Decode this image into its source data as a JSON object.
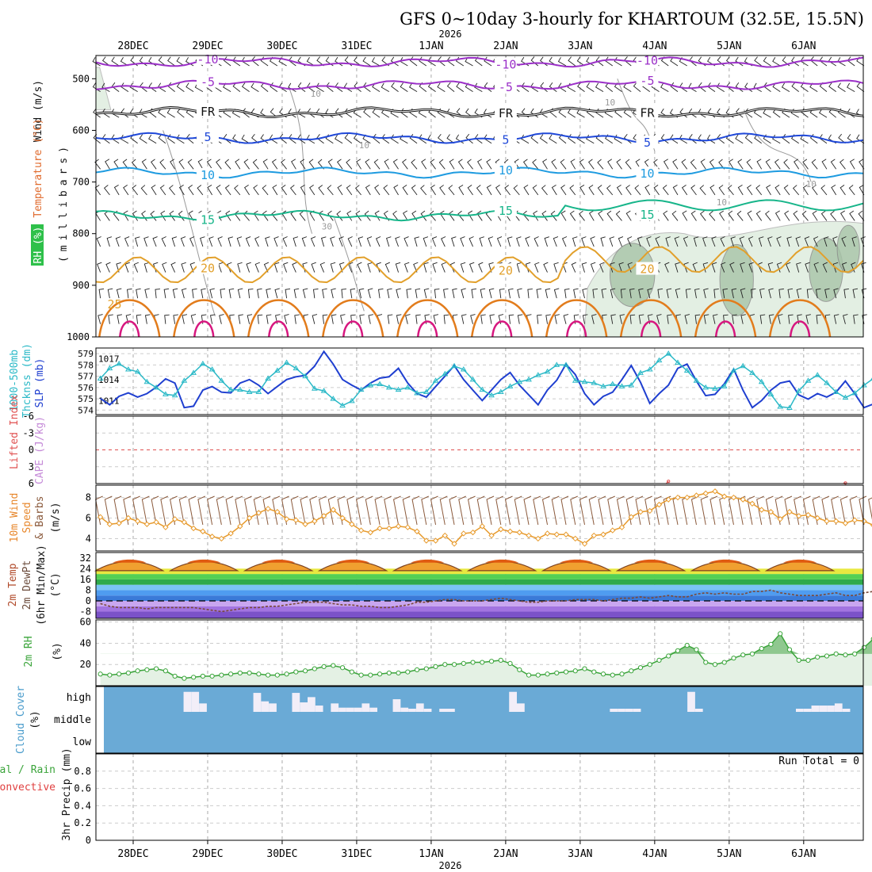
{
  "title": "GFS 0~10day 3-hourly for KHARTOUM (32.5E, 15.5N)",
  "year_label": "2026",
  "colors": {
    "purple": "#9b30c8",
    "black": "#111111",
    "blue": "#1f48d8",
    "skyblue": "#1e9be0",
    "green": "#17b58a",
    "gold": "#e2a02b",
    "orange": "#e27c1c",
    "magenta": "#d7177f",
    "slp": "#1f3fd0",
    "thick": "#2bb9c7",
    "wind10": "#e79a2c",
    "rh": "#3aa43a",
    "cloud": "#6aaad6",
    "lifted": "#e05050",
    "cape": "#c58ad8"
  },
  "chart_data": {
    "type": "meteogram",
    "x_axis": {
      "unit": "days since 27 Dec 2025 12Z",
      "range": [
        0,
        10.3
      ],
      "date_labels": [
        {
          "t": 0.5,
          "label": "28DEC"
        },
        {
          "t": 1.5,
          "label": "29DEC"
        },
        {
          "t": 2.5,
          "label": "30DEC"
        },
        {
          "t": 3.5,
          "label": "31DEC"
        },
        {
          "t": 4.5,
          "label": "1JAN"
        },
        {
          "t": 5.5,
          "label": "2JAN"
        },
        {
          "t": 6.5,
          "label": "3JAN"
        },
        {
          "t": 7.5,
          "label": "4JAN"
        },
        {
          "t": 8.5,
          "label": "5JAN"
        },
        {
          "t": 9.5,
          "label": "6JAN"
        }
      ]
    },
    "panels": [
      {
        "id": "upper_air",
        "type": "contour",
        "ylabel": "(millibars)",
        "y_ticks": [
          500,
          600,
          700,
          800,
          900,
          1000
        ],
        "ylim": [
          455,
          1000
        ],
        "legend": [
          "RH (%)",
          "Temperature (°C)",
          "Wind (m/s)"
        ],
        "temperature_contours": [
          {
            "value": -10,
            "label": "-10",
            "level_mb": 468
          },
          {
            "value": -5,
            "label": "-5",
            "level_mb": 512
          },
          {
            "value": 0,
            "label": "FR",
            "level_mb": 565
          },
          {
            "value": 5,
            "label": "5",
            "level_mb": 615
          },
          {
            "value": 10,
            "label": "10",
            "level_mb": 682
          },
          {
            "value": 15,
            "label": "15",
            "level_mb": 765
          },
          {
            "value": 20,
            "label": "20",
            "level_mb": 870
          },
          {
            "value": 25,
            "label": "25",
            "level_mb": 935
          }
        ],
        "rh_contour_labels": [
          "10",
          "10",
          "10",
          "10",
          "10",
          "30"
        ]
      },
      {
        "id": "slp_thickness",
        "type": "line",
        "ylabel_left": "1000-500mb Thckss (dm)",
        "ylabel_right": "SLP (mb)",
        "thickness_ticks": [
          574,
          575,
          576,
          577,
          578,
          579
        ],
        "slp_ticks": [
          1011,
          1014,
          1017
        ],
        "series": [
          {
            "name": "SLP (mb)",
            "range": [
              1009,
              1018.5
            ],
            "values": [
              1011.3,
              1010.4,
              1011.6,
              1012.1,
              1011.5,
              1012.0,
              1012.9,
              1014.1,
              1013.5,
              1010.0,
              1010.2,
              1012.5,
              1013.0,
              1012.2,
              1012.1,
              1013.5,
              1014.0,
              1013.2,
              1012.0,
              1013.0,
              1014.0,
              1014.4,
              1014.6,
              1015.9,
              1018.0,
              1016.2,
              1014.0,
              1013.2,
              1012.5,
              1013.5,
              1014.2,
              1014.4,
              1015.6,
              1013.5,
              1012.0,
              1011.5,
              1013.0,
              1014.5,
              1016.0,
              1014.0,
              1012.5,
              1011.0,
              1012.5,
              1014.0,
              1015.0,
              1013.2,
              1011.8,
              1010.4,
              1012.5,
              1013.9,
              1016.2,
              1014.7,
              1012.0,
              1010.4,
              1011.6,
              1012.2,
              1014.0,
              1016.0,
              1013.6,
              1010.6,
              1012.0,
              1013.2,
              1015.6,
              1016.2,
              1013.8,
              1011.7,
              1011.9,
              1013.4,
              1015.5,
              1012.5,
              1010.0,
              1011.0,
              1012.5,
              1013.5,
              1013.8,
              1011.8,
              1011.2,
              1012.0,
              1011.5,
              1012.2,
              1013.8,
              1012.0,
              1010.0,
              1010.5,
              1011.5,
              1013.3
            ]
          },
          {
            "name": "1000-500mb Thickness (dm)",
            "range": [
              573.6,
              579.5
            ],
            "values": [
              576.8,
              577.7,
              578.1,
              577.6,
              577.4,
              576.5,
              576.0,
              575.4,
              575.3,
              576.6,
              577.3,
              578.1,
              577.6,
              576.6,
              575.8,
              575.8,
              575.6,
              575.6,
              576.8,
              577.5,
              578.2,
              577.7,
              577.0,
              575.9,
              575.7,
              575.0,
              574.4,
              574.8,
              575.8,
              576.2,
              576.3,
              576.0,
              575.8,
              576.0,
              575.5,
              575.6,
              576.6,
              577.2,
              577.9,
              577.6,
              576.7,
              575.8,
              575.3,
              575.6,
              576.1,
              576.5,
              576.7,
              577.1,
              577.4,
              578.0,
              578.0,
              576.6,
              576.5,
              576.4,
              576.1,
              576.3,
              576.1,
              576.2,
              577.3,
              577.6,
              578.4,
              579.0,
              578.2,
              577.5,
              576.6,
              576.0,
              575.9,
              576.1,
              577.5,
              577.9,
              577.3,
              576.5,
              575.4,
              574.3,
              574.2,
              575.7,
              576.6,
              577.1,
              576.4,
              575.6,
              575.1,
              575.5,
              576.2,
              576.8,
              577.3,
              576.9,
              576.4,
              575.9,
              575.2
            ]
          }
        ]
      },
      {
        "id": "instability",
        "type": "line",
        "ylabel_left": "Lifted Index",
        "ylabel_right": "CAPE (J/kg)",
        "li_ticks": [
          -6,
          -3,
          0,
          3,
          6
        ],
        "note": "Lifted index remains near or above +6 (off-scale) for most of the period",
        "li_values": [
          8,
          8,
          8,
          8,
          8,
          8,
          8,
          8,
          8,
          8,
          8,
          8,
          8,
          8,
          8,
          8,
          8,
          8,
          8,
          8,
          8,
          8,
          8,
          8,
          8,
          8,
          8,
          8,
          8,
          8,
          8,
          8,
          8,
          8,
          8,
          8,
          8,
          8,
          8,
          8,
          8,
          8,
          8,
          8,
          8,
          8,
          8,
          8,
          8,
          8,
          8,
          8,
          8,
          8,
          8,
          8,
          8,
          8,
          8,
          8,
          8,
          5.6,
          8,
          8,
          8,
          8,
          8,
          8,
          8,
          8,
          8,
          8,
          8,
          8,
          8,
          8,
          8,
          8,
          8,
          8,
          5.9,
          8,
          8,
          8,
          8,
          8,
          4.3,
          2.4
        ]
      },
      {
        "id": "wind10m",
        "type": "line",
        "ylabel": "10m Wind Speed & Barbs (m/s)",
        "y_ticks": [
          4,
          6,
          8
        ],
        "ylim": [
          2.8,
          9.2
        ],
        "values": [
          6.1,
          5.4,
          5.5,
          6.0,
          5.7,
          5.4,
          5.6,
          5.1,
          5.9,
          5.6,
          5.0,
          4.7,
          4.2,
          4.0,
          4.5,
          5.2,
          6.0,
          6.5,
          6.9,
          6.6,
          5.9,
          5.8,
          5.4,
          5.7,
          6.2,
          6.8,
          6.0,
          5.4,
          4.8,
          4.6,
          5.0,
          5.0,
          5.2,
          5.1,
          4.7,
          3.8,
          3.8,
          4.3,
          3.5,
          4.5,
          4.6,
          5.2,
          4.3,
          4.9,
          4.7,
          4.6,
          4.3,
          4.0,
          4.5,
          4.4,
          4.4,
          4.0,
          3.5,
          4.3,
          4.4,
          4.8,
          5.1,
          6.1,
          6.6,
          6.7,
          7.3,
          7.8,
          8.0,
          8.0,
          8.2,
          8.4,
          8.6,
          8.1,
          8.0,
          7.8,
          7.4,
          6.8,
          6.6,
          5.9,
          6.6,
          6.2,
          6.3,
          6.0,
          5.7,
          5.7,
          5.5,
          5.8,
          5.7,
          5.3,
          5.1,
          5.0,
          5.2,
          5.5,
          6.3
        ]
      },
      {
        "id": "temp2m",
        "type": "area_line",
        "ylabel": "2m Temp / 2m DewPt (6hr Min/Max) (°C)",
        "y_ticks": [
          -8,
          0,
          8,
          16,
          24,
          32
        ],
        "ylim": [
          -13,
          36
        ],
        "temperature_minmax": {
          "min": 22.5,
          "max": 31.5
        },
        "dewpoint": [
          -2,
          -4,
          -5,
          -5,
          -5,
          -6,
          -5,
          -5,
          -5,
          -5,
          -5,
          -6,
          -7,
          -8,
          -7,
          -6,
          -5,
          -5,
          -4,
          -4,
          -3,
          -2,
          -1,
          -1,
          -1,
          -2,
          -3,
          -3,
          -4,
          -4,
          -5,
          -5,
          -4,
          -3,
          -1,
          -1,
          0,
          1,
          1,
          0,
          0,
          0,
          1,
          2,
          1,
          0,
          -1,
          -1,
          0,
          0,
          0,
          1,
          1,
          1,
          0,
          1,
          2,
          2,
          3,
          2,
          3,
          4,
          3,
          3,
          5,
          6,
          5,
          6,
          5,
          5,
          7,
          7,
          8,
          6,
          5,
          4,
          4,
          4,
          5,
          6,
          4,
          4,
          6,
          7,
          7,
          6,
          5,
          5,
          4,
          4,
          3,
          7
        ]
      },
      {
        "id": "rh2m",
        "type": "area_line",
        "ylabel": "2m RH (%)",
        "y_ticks": [
          20,
          40,
          60
        ],
        "ylim": [
          0,
          62
        ],
        "values": [
          11,
          10,
          11,
          12,
          14,
          15,
          16,
          14,
          9,
          7,
          8,
          9,
          9,
          10,
          11,
          12,
          12,
          11,
          10,
          10,
          11,
          13,
          14,
          16,
          18,
          19,
          17,
          13,
          10,
          10,
          11,
          12,
          12,
          13,
          15,
          16,
          18,
          20,
          20,
          21,
          22,
          22,
          23,
          24,
          21,
          15,
          10,
          10,
          11,
          12,
          13,
          14,
          16,
          13,
          11,
          10,
          11,
          14,
          17,
          20,
          24,
          28,
          33,
          38,
          34,
          22,
          20,
          22,
          26,
          29,
          30,
          35,
          39,
          49,
          34,
          24,
          24,
          27,
          28,
          30,
          29,
          30,
          36,
          44,
          31,
          25,
          25,
          27,
          28,
          30,
          43,
          56
        ]
      },
      {
        "id": "cloud",
        "type": "bars",
        "ylabel": "Cloud Cover (%)",
        "levels": [
          "high",
          "middle",
          "low"
        ],
        "high_values": [
          0,
          0,
          0,
          0,
          0,
          0,
          0,
          0,
          0,
          0,
          0,
          95,
          95,
          40,
          0,
          0,
          0,
          0,
          0,
          0,
          90,
          50,
          40,
          0,
          0,
          90,
          45,
          70,
          30,
          0,
          40,
          20,
          20,
          20,
          40,
          20,
          0,
          0,
          60,
          20,
          15,
          40,
          15,
          0,
          15,
          15,
          0,
          0,
          0,
          0,
          0,
          0,
          0,
          95,
          40,
          0,
          0,
          0,
          0,
          0,
          0,
          0,
          0,
          0,
          0,
          0,
          15,
          15,
          15,
          15,
          0,
          0,
          0,
          0,
          0,
          0,
          95,
          15,
          0,
          0,
          0,
          0,
          0,
          0,
          0,
          0,
          0,
          0,
          0,
          0,
          15,
          15,
          30,
          30,
          30,
          40,
          15,
          0,
          0
        ]
      },
      {
        "id": "precip",
        "type": "bar",
        "ylabel": "3hr Precip (mm)",
        "legend": [
          "Total / Rain",
          "Convective"
        ],
        "y_ticks": [
          0,
          0.2,
          0.4,
          0.6,
          0.8
        ],
        "ylim": [
          0,
          1.0
        ],
        "run_total_label": "Run Total = 0",
        "values": []
      }
    ]
  },
  "labels": {
    "ua_wind": "Wind (m/s)",
    "ua_temp": "Temperature (°C)",
    "ua_rh": "RH (%)",
    "ua_mb": "(millibars)",
    "thck1": "1000-500mb",
    "thck2": "Thcknss (dm)",
    "slp": "SLP (mb)",
    "li": "Lifted Index",
    "cape": "CAPE (J/kg)",
    "w10_1": "10m Wind",
    "w10_2": "Speed",
    "w10_3": "& Barbs",
    "w10_4": "(m/s)",
    "t2_1": "2m Temp",
    "t2_2": "2m DewPt",
    "t2_3": "(6hr Min/Max)",
    "t2_4": "(°C)",
    "rh_1": "2m RH",
    "rh_2": "(%)",
    "cl_1": "Cloud Cover",
    "cl_2": "(%)",
    "pr_1": "Total / Rain",
    "pr_2": "Convective",
    "pr_3": "3hr Precip (mm)",
    "run_total": "Run Total = 0"
  }
}
